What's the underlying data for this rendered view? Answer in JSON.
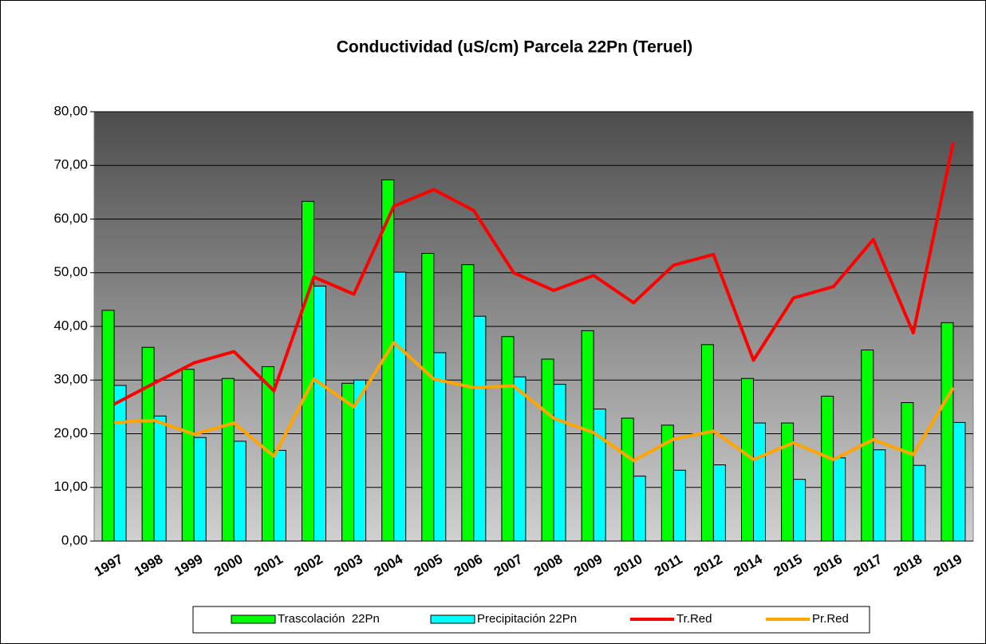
{
  "chart_data": {
    "type": "bar",
    "title": "Conductividad (uS/cm) Parcela 22Pn (Teruel)",
    "categories": [
      "1997",
      "1998",
      "1999",
      "2000",
      "2001",
      "2002",
      "2003",
      "2004",
      "2005",
      "2006",
      "2007",
      "2008",
      "2009",
      "2010",
      "2011",
      "2012",
      "2014",
      "2015",
      "2016",
      "2017",
      "2018",
      "2019"
    ],
    "series": [
      {
        "name": "Trascolación  22Pn",
        "type": "bar",
        "color": "#00ff00",
        "values": [
          43.0,
          36.1,
          32.0,
          30.3,
          32.5,
          63.3,
          29.4,
          67.3,
          53.6,
          51.5,
          38.1,
          33.9,
          39.2,
          22.9,
          21.6,
          36.6,
          30.3,
          22.0,
          27.0,
          35.6,
          25.8,
          40.7
        ]
      },
      {
        "name": "Precipitación 22Pn",
        "type": "bar",
        "color": "#00ffff",
        "values": [
          29.0,
          23.3,
          19.3,
          18.6,
          16.9,
          47.5,
          30.0,
          50.1,
          35.1,
          41.9,
          30.6,
          29.2,
          24.6,
          12.1,
          13.2,
          14.2,
          22.0,
          11.5,
          15.5,
          17.0,
          14.1,
          22.1
        ]
      },
      {
        "name": "Tr.Red",
        "type": "line",
        "color": "#ff0000",
        "values": [
          25.5,
          29.4,
          33.2,
          35.3,
          28.0,
          49.2,
          46.0,
          62.4,
          65.5,
          61.6,
          50.0,
          46.7,
          49.5,
          44.4,
          51.4,
          53.4,
          33.7,
          45.3,
          47.4,
          56.2,
          38.8,
          74.3
        ]
      },
      {
        "name": "Pr.Red",
        "type": "line",
        "color": "#ffa500",
        "values": [
          22.1,
          22.5,
          19.9,
          22.0,
          15.8,
          30.2,
          25.0,
          37.0,
          30.2,
          28.6,
          28.9,
          22.9,
          20.2,
          15.0,
          19.0,
          20.5,
          15.2,
          18.3,
          15.2,
          18.9,
          16.1,
          28.6
        ]
      }
    ],
    "ylim": [
      0,
      80
    ],
    "yticks": [
      {
        "value": 0,
        "label": "0,00"
      },
      {
        "value": 10,
        "label": "10,00"
      },
      {
        "value": 20,
        "label": "20,00"
      },
      {
        "value": 30,
        "label": "30,00"
      },
      {
        "value": 40,
        "label": "40,00"
      },
      {
        "value": 50,
        "label": "50,00"
      },
      {
        "value": 60,
        "label": "60,00"
      },
      {
        "value": 70,
        "label": "70,00"
      },
      {
        "value": 80,
        "label": "80,00"
      }
    ],
    "grid": true,
    "legend": "bottom"
  }
}
